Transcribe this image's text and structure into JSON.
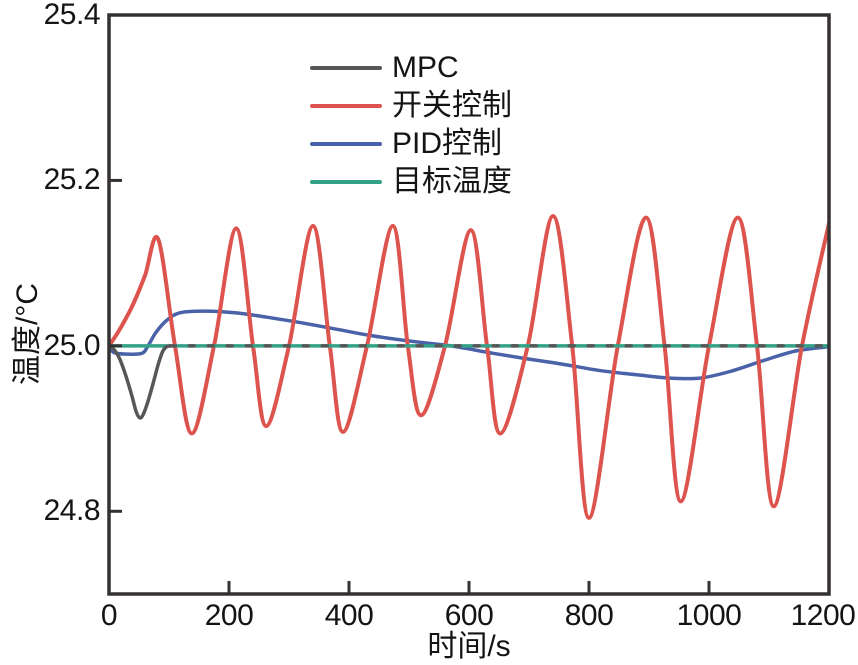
{
  "figure": {
    "background": "#ffffff",
    "box_color": "#353132",
    "text_color": "#141414"
  },
  "chart_data": {
    "type": "line",
    "title": "",
    "xlabel": "时间/s",
    "ylabel": "温度/°C",
    "xlim": [
      0,
      1200
    ],
    "ylim": [
      24.7,
      25.4
    ],
    "xticks": [
      0,
      200,
      400,
      600,
      800,
      1000,
      1200
    ],
    "xtick_labels": [
      "0",
      "200",
      "400",
      "600",
      "800",
      "1000",
      "1200"
    ],
    "yticks": [
      24.8,
      25.0,
      25.2,
      25.4
    ],
    "ytick_labels": [
      "24.8",
      "25.0",
      "25.2",
      "25.4"
    ],
    "grid": false,
    "legend_position": "inside-top-center",
    "series": [
      {
        "name": "MPC",
        "color": "#575757",
        "width": 3.5,
        "z": 4,
        "parts": [
          {
            "smooth": true,
            "points": [
              [
                0,
                25.0
              ],
              [
                8,
                24.996
              ],
              [
                18,
                24.984
              ],
              [
                28,
                24.964
              ],
              [
                38,
                24.94
              ],
              [
                45,
                24.921
              ],
              [
                51,
                24.913
              ],
              [
                57,
                24.917
              ],
              [
                65,
                24.933
              ],
              [
                74,
                24.956
              ],
              [
                83,
                24.98
              ],
              [
                90,
                24.994
              ],
              [
                96,
                24.999
              ],
              [
                102,
                25.0
              ]
            ]
          },
          {
            "smooth": false,
            "dash": "5 14",
            "points": [
              [
                102,
                25.0
              ],
              [
                1200,
                25.0
              ]
            ]
          }
        ]
      },
      {
        "name": "开关控制",
        "color": "#dd544f",
        "width": 4,
        "z": 2,
        "parts": [
          {
            "smooth": true,
            "points": [
              [
                0,
                25.0
              ],
              [
                18,
                25.02
              ],
              [
                40,
                25.05
              ],
              [
                60,
                25.085
              ],
              [
                82,
                25.129
              ],
              [
                110,
                25.0
              ],
              [
                138,
                24.894
              ],
              [
                175,
                25.0
              ],
              [
                212,
                25.142
              ],
              [
                240,
                25.0
              ],
              [
                262,
                24.903
              ],
              [
                300,
                25.0
              ],
              [
                340,
                25.145
              ],
              [
                368,
                25.0
              ],
              [
                390,
                24.896
              ],
              [
                430,
                25.0
              ],
              [
                473,
                25.145
              ],
              [
                498,
                25.0
              ],
              [
                520,
                24.916
              ],
              [
                560,
                25.0
              ],
              [
                603,
                25.14
              ],
              [
                630,
                25.0
              ],
              [
                652,
                24.894
              ],
              [
                698,
                25.0
              ],
              [
                740,
                25.157
              ],
              [
                772,
                25.0
              ],
              [
                800,
                24.792
              ],
              [
                848,
                25.0
              ],
              [
                895,
                25.155
              ],
              [
                926,
                25.0
              ],
              [
                953,
                24.812
              ],
              [
                1000,
                25.0
              ],
              [
                1048,
                25.155
              ],
              [
                1080,
                25.0
              ],
              [
                1108,
                24.806
              ],
              [
                1155,
                25.0
              ],
              [
                1200,
                25.148
              ]
            ]
          }
        ]
      },
      {
        "name": "PID控制",
        "color": "#4a62a8",
        "width": 3.5,
        "z": 1,
        "parts": [
          {
            "smooth": true,
            "points": [
              [
                0,
                25.0
              ],
              [
                8,
                24.992
              ],
              [
                30,
                24.99
              ],
              [
                55,
                24.991
              ],
              [
                65,
                25.0
              ],
              [
                78,
                25.016
              ],
              [
                95,
                25.03
              ],
              [
                118,
                25.04
              ],
              [
                160,
                25.042
              ],
              [
                210,
                25.04
              ],
              [
                260,
                25.035
              ],
              [
                320,
                25.028
              ],
              [
                380,
                25.02
              ],
              [
                440,
                25.012
              ],
              [
                510,
                25.005
              ],
              [
                570,
                25.0
              ],
              [
                640,
                24.991
              ],
              [
                700,
                24.984
              ],
              [
                755,
                24.978
              ],
              [
                820,
                24.97
              ],
              [
                880,
                24.965
              ],
              [
                935,
                24.961
              ],
              [
                985,
                24.961
              ],
              [
                1035,
                24.969
              ],
              [
                1090,
                24.982
              ],
              [
                1140,
                24.993
              ],
              [
                1175,
                24.997
              ],
              [
                1200,
                24.999
              ]
            ]
          }
        ]
      },
      {
        "name": "目标温度",
        "color": "#33a288",
        "width": 3.5,
        "z": 3,
        "parts": [
          {
            "smooth": false,
            "points": [
              [
                0,
                25.0
              ],
              [
                1200,
                25.0
              ]
            ]
          }
        ]
      }
    ]
  }
}
